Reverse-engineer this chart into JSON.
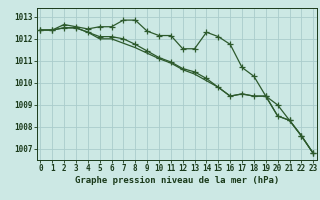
{
  "title": "Graphe pression niveau de la mer (hPa)",
  "background_color": "#cce8e4",
  "grid_color": "#aacccc",
  "line_color": "#2d5a2d",
  "text_color": "#1a3a1a",
  "x_values": [
    0,
    1,
    2,
    3,
    4,
    5,
    6,
    7,
    8,
    9,
    10,
    11,
    12,
    13,
    14,
    15,
    16,
    17,
    18,
    19,
    20,
    21,
    22,
    23
  ],
  "line1": [
    1012.4,
    1012.4,
    1012.65,
    1012.55,
    1012.45,
    1012.55,
    1012.55,
    1012.85,
    1012.85,
    1012.35,
    1012.15,
    1012.15,
    1011.55,
    1011.55,
    1012.3,
    1012.1,
    1011.75,
    1010.7,
    1010.3,
    1009.4,
    1009.0,
    1008.3,
    1007.6,
    1006.8
  ],
  "line2": [
    1012.4,
    1012.4,
    1012.5,
    1012.5,
    1012.3,
    1012.1,
    1012.1,
    1012.0,
    1011.75,
    1011.45,
    1011.15,
    1010.95,
    1010.65,
    1010.5,
    1010.2,
    1009.8,
    1009.4,
    1009.5,
    1009.4,
    1009.4,
    1008.5,
    1008.3,
    1007.6,
    1006.8
  ],
  "line3": [
    1012.4,
    1012.4,
    1012.5,
    1012.5,
    1012.3,
    1012.0,
    1012.0,
    1011.8,
    1011.6,
    1011.35,
    1011.1,
    1010.9,
    1010.6,
    1010.4,
    1010.1,
    1009.8,
    1009.4,
    1009.5,
    1009.4,
    1009.4,
    1008.5,
    1008.3,
    1007.6,
    1006.8
  ],
  "ylim": [
    1006.5,
    1013.4
  ],
  "yticks": [
    1007,
    1008,
    1009,
    1010,
    1011,
    1012,
    1013
  ],
  "tick_fontsize": 5.5,
  "title_fontsize": 6.5
}
